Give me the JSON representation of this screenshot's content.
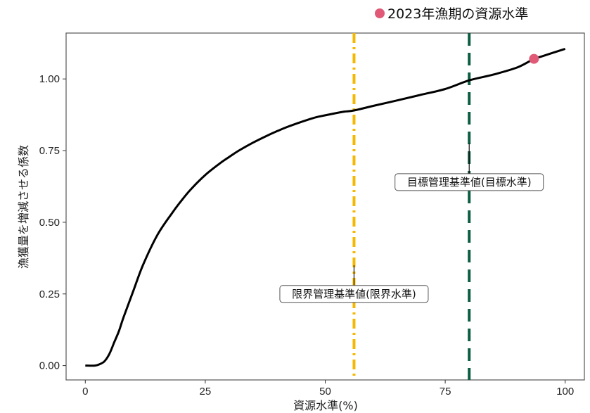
{
  "chart_data": {
    "type": "line",
    "xlabel": "資源水準(%)",
    "ylabel": "漁獲量を増減させる係数",
    "xlim": [
      -4,
      104
    ],
    "ylim": [
      -0.05,
      1.16
    ],
    "xticks": [
      0,
      25,
      50,
      75,
      100
    ],
    "yticks": [
      0.0,
      0.25,
      0.5,
      0.75,
      1.0
    ],
    "x_tick_labels": [
      "0",
      "25",
      "50",
      "75",
      "100"
    ],
    "y_tick_labels": [
      "0.00",
      "0.25",
      "0.50",
      "0.75",
      "1.00"
    ],
    "grid": false,
    "series": [
      {
        "color": "#000000",
        "x": [
          0,
          2,
          3,
          4,
          5,
          6,
          7,
          8,
          10,
          12,
          15,
          18,
          20,
          22,
          25,
          28,
          30,
          32,
          35,
          38,
          40,
          42,
          45,
          48,
          50,
          52,
          54,
          56,
          60,
          65,
          70,
          75,
          80,
          85,
          90,
          93.5,
          95,
          100
        ],
        "y": [
          0.0,
          0.0,
          0.005,
          0.015,
          0.04,
          0.08,
          0.12,
          0.17,
          0.26,
          0.35,
          0.455,
          0.53,
          0.575,
          0.615,
          0.665,
          0.705,
          0.728,
          0.75,
          0.778,
          0.803,
          0.818,
          0.832,
          0.85,
          0.866,
          0.873,
          0.88,
          0.886,
          0.89,
          0.906,
          0.925,
          0.945,
          0.965,
          0.995,
          1.015,
          1.04,
          1.07,
          1.078,
          1.105
        ]
      }
    ],
    "vertical_lines": [
      {
        "x": 56,
        "color": "#F5B800",
        "style": "dashdot",
        "label": "限界管理基準値(限界水準)",
        "label_y": 0.25
      },
      {
        "x": 80,
        "color": "#0B5E40",
        "style": "dashed",
        "label": "目標管理基準値(目標水準)",
        "label_y": 0.64
      }
    ],
    "highlight_point": {
      "x": 93.5,
      "y": 1.07,
      "color": "#E05A77",
      "label": "2023年漁期の資源水準"
    },
    "legend_position": "top-right"
  }
}
